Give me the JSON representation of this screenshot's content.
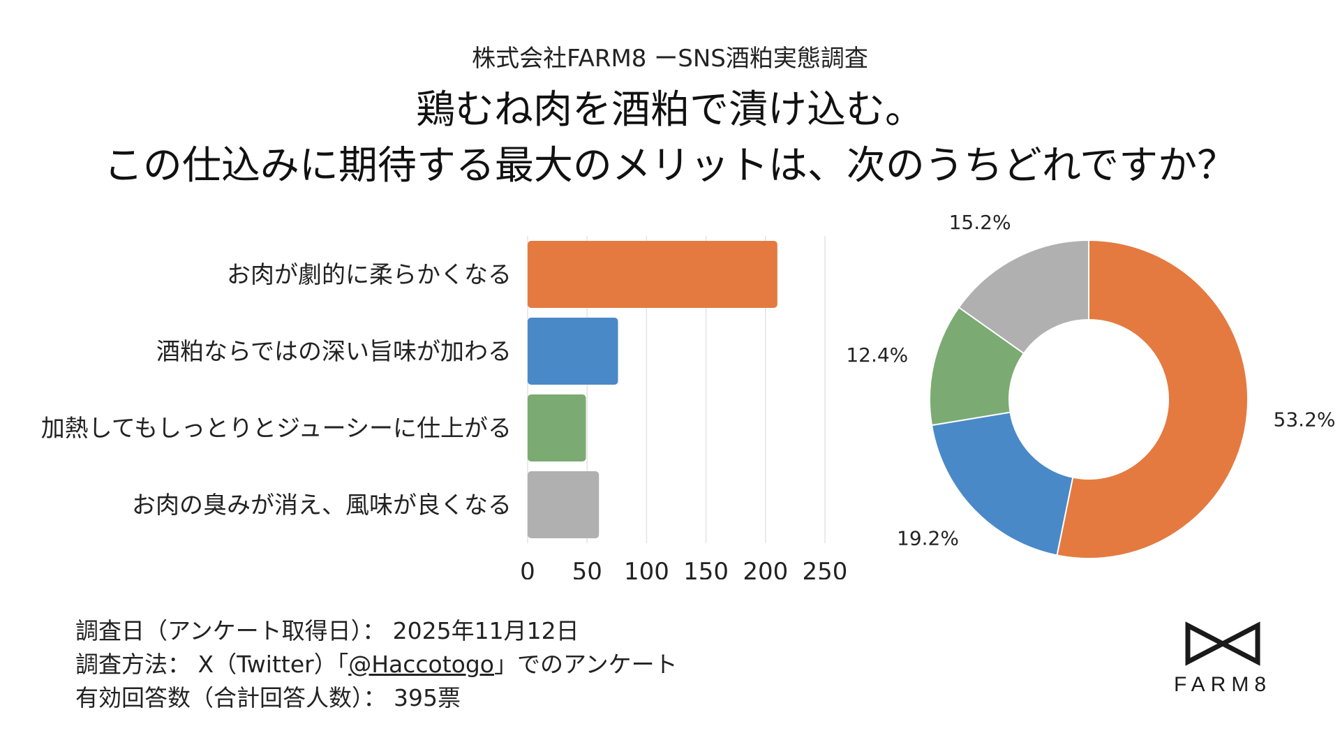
{
  "header": {
    "subtitle": "株式会社FARM8 ーSNS酒粕実態調査",
    "title_line1": "鶏むね肉を酒粕で漬け込む。",
    "title_line2": "この仕込みに期待する最大のメリットは、次のうちどれですか？"
  },
  "chart_data": [
    {
      "type": "bar",
      "orientation": "horizontal",
      "categories": [
        "お肉が劇的に柔らかくなる",
        "酒粕ならではの深い旨味が加わる",
        "加熱してもしっとりとジューシーに仕上がる",
        "お肉の臭みが消え、風味が良くなる"
      ],
      "values": [
        210,
        76,
        49,
        60
      ],
      "colors": [
        "#E47A40",
        "#4A89C8",
        "#7BAA72",
        "#B0B0B0"
      ],
      "xlim": [
        0,
        250
      ],
      "xticks": [
        0,
        50,
        100,
        150,
        200,
        250
      ],
      "grid": true
    },
    {
      "type": "pie",
      "style": "donut",
      "values": [
        53.2,
        19.2,
        12.4,
        15.2
      ],
      "labels": [
        "53.2%",
        "19.2%",
        "12.4%",
        "15.2%"
      ],
      "colors": [
        "#E47A40",
        "#4A89C8",
        "#7BAA72",
        "#B0B0B0"
      ]
    }
  ],
  "footer": {
    "date_line": "調査日（アンケート取得日）： 2025年11月12日",
    "method_prefix": "調査方法： X（Twitter）「",
    "method_handle": "@Haccotogo",
    "method_suffix": "」でのアンケート",
    "responses_line": "有効回答数（合計回答人数）： 395票"
  },
  "logo": {
    "text": "FARM8",
    "icon": "bowtie-logo-icon"
  }
}
